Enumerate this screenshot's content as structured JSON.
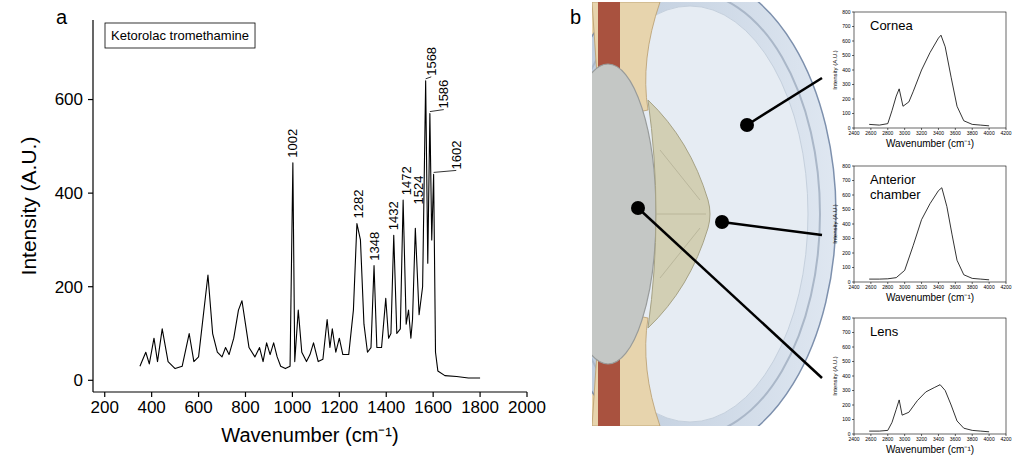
{
  "panel_labels": [
    "a",
    "b"
  ],
  "chart_data": [
    {
      "type": "line",
      "xlabel": "Wavenumber (cm⁻¹)",
      "ylabel": "Intensity (A.U.)",
      "legend": "upper left",
      "grid": false,
      "xlim": [
        150,
        2000
      ],
      "ylim": [
        -25,
        770
      ],
      "xticks": [
        200,
        400,
        600,
        800,
        1000,
        1200,
        1400,
        1600,
        1800,
        2000
      ],
      "yticks": [
        0,
        200,
        400,
        600
      ],
      "x": [
        350,
        375,
        390,
        410,
        425,
        445,
        470,
        500,
        530,
        560,
        580,
        600,
        640,
        660,
        680,
        700,
        715,
        730,
        750,
        770,
        785,
        800,
        815,
        840,
        860,
        875,
        890,
        905,
        920,
        935,
        950,
        970,
        990,
        1002,
        1010,
        1025,
        1040,
        1060,
        1075,
        1090,
        1110,
        1130,
        1148,
        1160,
        1170,
        1185,
        1200,
        1215,
        1240,
        1260,
        1275,
        1290,
        1305,
        1320,
        1335,
        1348,
        1360,
        1380,
        1398,
        1410,
        1420,
        1432,
        1445,
        1460,
        1472,
        1485,
        1495,
        1505,
        1512,
        1524,
        1540,
        1555,
        1568,
        1577,
        1586,
        1594,
        1602,
        1610,
        1620,
        1650,
        1700,
        1750,
        1800
      ],
      "series": [
        {
          "name": "Ketorolac tromethamine",
          "color": "#000000",
          "values": [
            30,
            60,
            35,
            90,
            40,
            110,
            40,
            25,
            30,
            100,
            40,
            50,
            225,
            100,
            60,
            50,
            70,
            55,
            90,
            150,
            170,
            120,
            70,
            50,
            70,
            40,
            80,
            55,
            80,
            50,
            30,
            25,
            30,
            465,
            40,
            150,
            60,
            40,
            55,
            80,
            40,
            45,
            130,
            70,
            110,
            60,
            90,
            55,
            55,
            150,
            335,
            300,
            120,
            60,
            70,
            245,
            70,
            70,
            175,
            90,
            100,
            310,
            100,
            110,
            385,
            120,
            150,
            90,
            130,
            325,
            140,
            200,
            640,
            250,
            570,
            300,
            440,
            60,
            20,
            10,
            8,
            5,
            5
          ]
        }
      ],
      "annotations": [
        {
          "x": 1002,
          "y": 465
        },
        {
          "x": 1282,
          "y": 335
        },
        {
          "x": 1348,
          "y": 245
        },
        {
          "x": 1432,
          "y": 310
        },
        {
          "x": 1472,
          "y": 385
        },
        {
          "x": 1524,
          "y": 325
        },
        {
          "x": 1568,
          "y": 640
        },
        {
          "x": 1586,
          "y": 570
        },
        {
          "x": 1602,
          "y": 440
        }
      ]
    },
    {
      "type": "line",
      "title": "Cornea",
      "xlabel": "Wavenumber (cm⁻¹)",
      "ylabel": "Intensity (A.U.)",
      "grid": false,
      "xlim": [
        2400,
        4200
      ],
      "ylim": [
        0,
        800
      ],
      "xticks": [
        2400,
        2600,
        2800,
        3000,
        3200,
        3400,
        3600,
        3800,
        4000,
        4200
      ],
      "yticks": [
        0,
        100,
        200,
        300,
        400,
        500,
        600,
        700,
        800
      ],
      "x": [
        2580,
        2700,
        2800,
        2850,
        2900,
        2935,
        2980,
        3050,
        3100,
        3200,
        3300,
        3400,
        3430,
        3480,
        3550,
        3620,
        3700,
        3800,
        3900,
        4000
      ],
      "series": [
        {
          "color": "#000000",
          "values": [
            25,
            20,
            30,
            120,
            220,
            270,
            150,
            180,
            250,
            400,
            520,
            620,
            640,
            560,
            350,
            150,
            50,
            25,
            20,
            15
          ]
        }
      ]
    },
    {
      "type": "line",
      "title": "Anterior chamber",
      "xlabel": "Wavenumber (cm⁻¹)",
      "ylabel": "Intensity (A.U.)",
      "grid": false,
      "xlim": [
        2400,
        4200
      ],
      "ylim": [
        0,
        800
      ],
      "xticks": [
        2400,
        2600,
        2800,
        3000,
        3200,
        3400,
        3600,
        3800,
        4000,
        4200
      ],
      "yticks": [
        0,
        100,
        200,
        300,
        400,
        500,
        600,
        700,
        800
      ],
      "x": [
        2580,
        2700,
        2800,
        2900,
        3000,
        3100,
        3200,
        3300,
        3400,
        3440,
        3500,
        3560,
        3620,
        3700,
        3800,
        3900,
        4000
      ],
      "series": [
        {
          "color": "#000000",
          "values": [
            20,
            20,
            22,
            30,
            80,
            250,
            430,
            540,
            630,
            650,
            520,
            330,
            150,
            50,
            25,
            20,
            15
          ]
        }
      ]
    },
    {
      "type": "line",
      "title": "Lens",
      "xlabel": "Wavenumber (cm⁻¹)",
      "ylabel": "Intensity (A.U.)",
      "grid": false,
      "xlim": [
        2400,
        4200
      ],
      "ylim": [
        0,
        800
      ],
      "xticks": [
        2400,
        2600,
        2800,
        3000,
        3200,
        3400,
        3600,
        3800,
        4000,
        4200
      ],
      "yticks": [
        0,
        100,
        200,
        300,
        400,
        500,
        600,
        700,
        800
      ],
      "x": [
        2580,
        2700,
        2800,
        2850,
        2900,
        2935,
        2970,
        3050,
        3150,
        3250,
        3350,
        3420,
        3480,
        3550,
        3620,
        3700,
        3800,
        3900,
        4000
      ],
      "series": [
        {
          "color": "#000000",
          "values": [
            20,
            20,
            25,
            80,
            170,
            235,
            130,
            150,
            230,
            290,
            320,
            340,
            300,
            200,
            90,
            40,
            25,
            20,
            15
          ]
        }
      ]
    }
  ]
}
